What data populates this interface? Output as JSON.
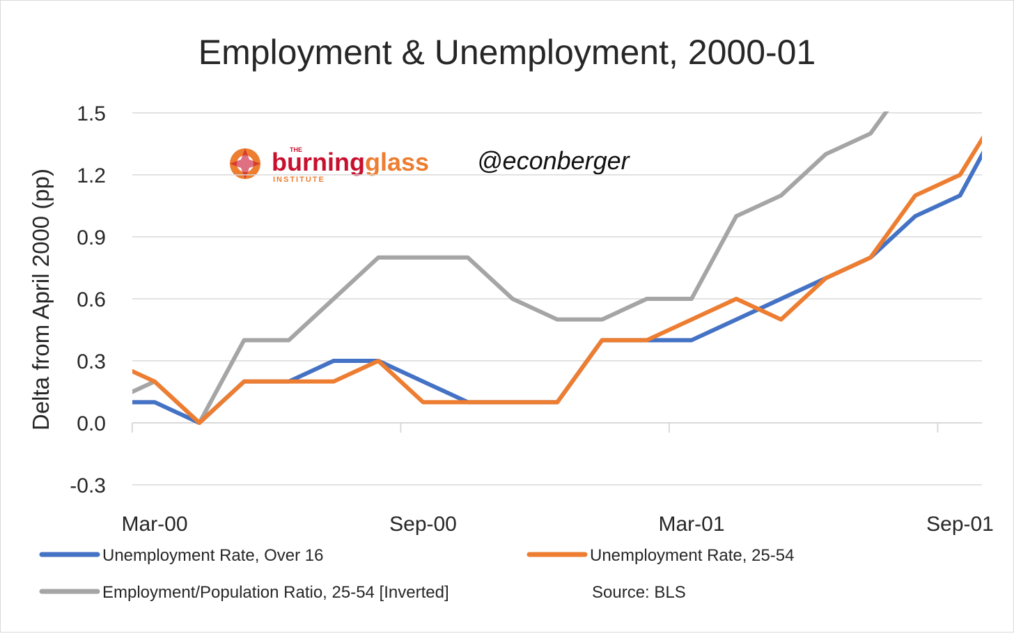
{
  "chart_data": {
    "type": "line",
    "title": "Employment & Unemployment, 2000-01",
    "y_label": "Delta from April 2000 (pp)",
    "categories": [
      null,
      "Mar-00",
      null,
      null,
      null,
      null,
      null,
      "Sep-00",
      null,
      null,
      null,
      null,
      null,
      "Mar-01",
      null,
      null,
      null,
      null,
      null,
      "Sep-01",
      null
    ],
    "series": [
      {
        "name": "Unemployment Rate, Over 16",
        "color": "#4472c4",
        "values": [
          0.1,
          0.1,
          0,
          0.2,
          0.2,
          0.3,
          0.3,
          0.2,
          0.1,
          0.1,
          0.1,
          0.4,
          0.4,
          0.4,
          0.5,
          0.6,
          0.7,
          0.8,
          1.0,
          1.1,
          1.5
        ]
      },
      {
        "name": "Unemployment Rate, 25-54",
        "color": "#ed7d31",
        "values": [
          0.3,
          0.2,
          0,
          0.2,
          0.2,
          0.2,
          0.3,
          0.1,
          0.1,
          0.1,
          0.1,
          0.4,
          0.4,
          0.5,
          0.6,
          0.5,
          0.7,
          0.8,
          1.1,
          1.2,
          1.55
        ]
      },
      {
        "name": "Employment/Population Ratio, 25-54 [Inverted]",
        "color": "#a5a5a5",
        "values": [
          0.1,
          0.2,
          0,
          0.4,
          0.4,
          0.6,
          0.8,
          0.8,
          0.8,
          0.6,
          0.5,
          0.5,
          0.6,
          0.6,
          1.0,
          1.1,
          1.3,
          1.4,
          1.7,
          null,
          null
        ]
      }
    ],
    "ylim": [
      -0.3,
      1.5
    ],
    "yticks": [
      {
        "value": -0.3,
        "label": "-0.3"
      },
      {
        "value": 0,
        "label": "0.0"
      },
      0.3,
      0.6,
      0.9,
      1.2,
      1.5
    ],
    "grid": true,
    "source": "Source: BLS",
    "logo": [
      "THE",
      "burning",
      "glass",
      "INSTITUTE"
    ],
    "handle": "@econberger"
  }
}
